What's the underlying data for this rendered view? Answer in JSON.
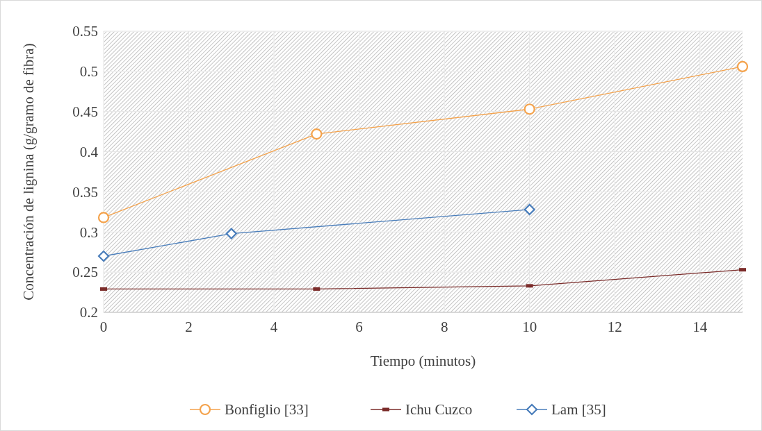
{
  "chart_data": {
    "type": "line",
    "xlabel": "Tiempo (minutos)",
    "ylabel": "Concentración de lignina (g/gramo de fibra)",
    "xlim": [
      0,
      15
    ],
    "xticks": [
      0,
      2,
      4,
      6,
      8,
      10,
      12,
      14
    ],
    "ylim": [
      0.2,
      0.55
    ],
    "yticks": [
      0.2,
      0.25,
      0.3,
      0.35,
      0.4,
      0.45,
      0.5,
      0.55
    ],
    "grid": true,
    "legend": "bottom",
    "series": [
      {
        "name": "Bonfiglio [33]",
        "color": "#f4a24b",
        "marker": "circle",
        "x": [
          0,
          5,
          10,
          15
        ],
        "values": [
          0.318,
          0.422,
          0.453,
          0.506
        ]
      },
      {
        "name": "Ichu Cuzco",
        "color": "#7b2c2a",
        "marker": "square",
        "x": [
          0,
          5,
          10,
          15
        ],
        "values": [
          0.229,
          0.229,
          0.233,
          0.253
        ]
      },
      {
        "name": "Lam [35]",
        "color": "#4a7ebb",
        "marker": "diamond",
        "x": [
          0,
          3,
          10
        ],
        "values": [
          0.27,
          0.298,
          0.328
        ]
      }
    ]
  }
}
